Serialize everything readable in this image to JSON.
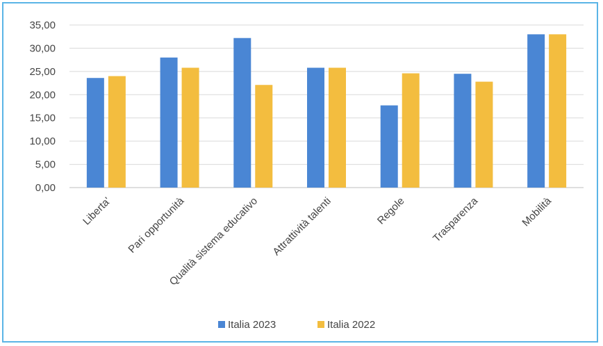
{
  "chart_data": {
    "type": "bar",
    "title": "",
    "xlabel": "",
    "ylabel": "",
    "categories": [
      "Liberta'",
      "Pari opportunità",
      "Qualità sistema educativo",
      "Attrattività talenti",
      "Regole",
      "Trasparenza",
      "Mobilità"
    ],
    "series": [
      {
        "name": "Italia 2023",
        "color": "#4a86d4",
        "values": [
          23.6,
          28.0,
          32.2,
          25.8,
          17.7,
          24.5,
          33.0
        ]
      },
      {
        "name": "Italia 2022",
        "color": "#f3bd3f",
        "values": [
          24.0,
          25.8,
          22.1,
          25.8,
          24.6,
          22.8,
          33.0
        ]
      }
    ],
    "ylim": [
      0,
      35
    ],
    "yticks": [
      "0,00",
      "5,00",
      "10,00",
      "15,00",
      "20,00",
      "25,00",
      "30,00",
      "35,00"
    ],
    "grid": true,
    "legend": "bottom",
    "gridline_color": "#d9d9d9"
  }
}
